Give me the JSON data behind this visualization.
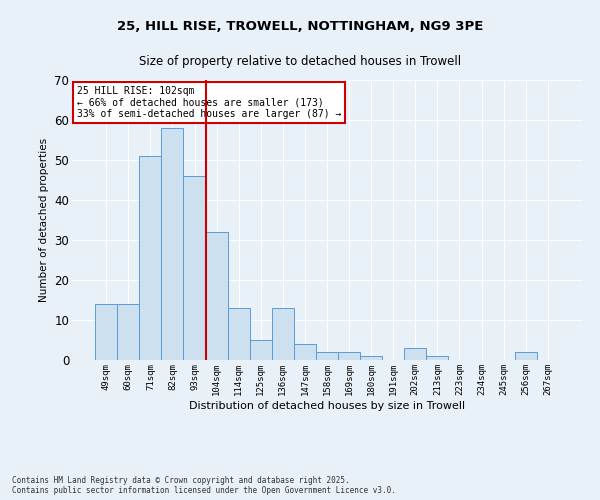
{
  "title1": "25, HILL RISE, TROWELL, NOTTINGHAM, NG9 3PE",
  "title2": "Size of property relative to detached houses in Trowell",
  "xlabel": "Distribution of detached houses by size in Trowell",
  "ylabel": "Number of detached properties",
  "categories": [
    "49sqm",
    "60sqm",
    "71sqm",
    "82sqm",
    "93sqm",
    "104sqm",
    "114sqm",
    "125sqm",
    "136sqm",
    "147sqm",
    "158sqm",
    "169sqm",
    "180sqm",
    "191sqm",
    "202sqm",
    "213sqm",
    "223sqm",
    "234sqm",
    "245sqm",
    "256sqm",
    "267sqm"
  ],
  "values": [
    14,
    14,
    51,
    58,
    46,
    32,
    13,
    5,
    13,
    4,
    2,
    2,
    1,
    0,
    3,
    1,
    0,
    0,
    0,
    2,
    0
  ],
  "bar_color": "#cce0f0",
  "bar_edge_color": "#5b9bd5",
  "vline_color": "#cc0000",
  "annotation_text": "25 HILL RISE: 102sqm\n← 66% of detached houses are smaller (173)\n33% of semi-detached houses are larger (87) →",
  "annotation_box_color": "#ffffff",
  "annotation_box_edge": "#cc0000",
  "ylim": [
    0,
    70
  ],
  "yticks": [
    0,
    10,
    20,
    30,
    40,
    50,
    60,
    70
  ],
  "background_color": "#e8f0f8",
  "footer_text": "Contains HM Land Registry data © Crown copyright and database right 2025.\nContains public sector information licensed under the Open Government Licence v3.0.",
  "grid_color": "#ffffff"
}
